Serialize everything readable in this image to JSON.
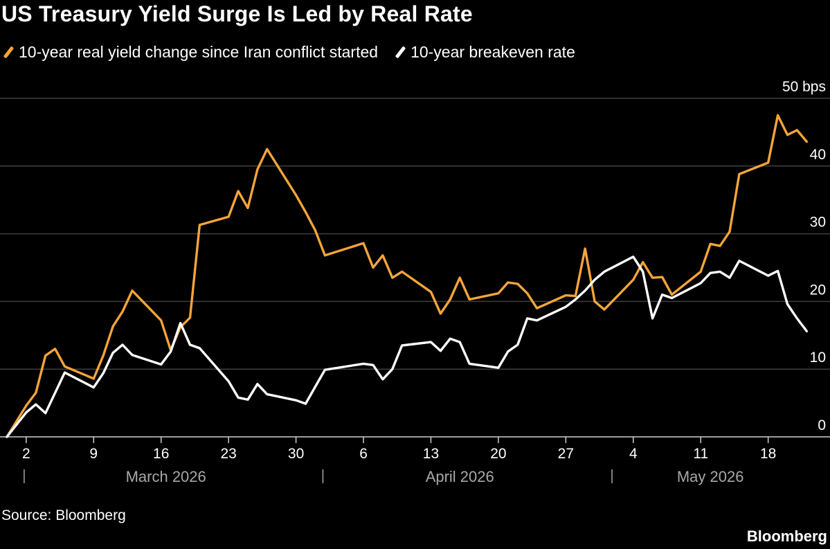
{
  "chart_data": {
    "type": "line",
    "title": "US Treasury Yield Surge Is Led by Real Rate",
    "ylabel_unit": "bps",
    "ylim": [
      0,
      50
    ],
    "y_ticks": [
      0,
      10,
      20,
      30,
      40,
      50
    ],
    "y_tick_labels": [
      "0",
      "10",
      "20",
      "30",
      "40",
      "50 bps"
    ],
    "x_range": [
      "2026-02-28",
      "2026-05-23"
    ],
    "x_ticks": [
      {
        "date": "2026-03-02",
        "label": "2"
      },
      {
        "date": "2026-03-09",
        "label": "9"
      },
      {
        "date": "2026-03-16",
        "label": "16"
      },
      {
        "date": "2026-03-23",
        "label": "23"
      },
      {
        "date": "2026-03-30",
        "label": "30"
      },
      {
        "date": "2026-04-06",
        "label": "6"
      },
      {
        "date": "2026-04-13",
        "label": "13"
      },
      {
        "date": "2026-04-20",
        "label": "20"
      },
      {
        "date": "2026-04-27",
        "label": "27"
      },
      {
        "date": "2026-05-04",
        "label": "4"
      },
      {
        "date": "2026-05-11",
        "label": "11"
      },
      {
        "date": "2026-05-18",
        "label": "18"
      }
    ],
    "month_labels": [
      {
        "label": "March 2026",
        "start": "2026-03-01",
        "end": "2026-04-01"
      },
      {
        "label": "April 2026",
        "start": "2026-04-01",
        "end": "2026-05-01"
      },
      {
        "label": "May 2026",
        "start": "2026-05-01",
        "end": "2026-05-23"
      }
    ],
    "month_separators": [
      "2026-03-01",
      "2026-04-01",
      "2026-05-01"
    ],
    "grid": true,
    "legend_position": "top-left",
    "series": [
      {
        "name": "10-year real yield change since Iran conflict started",
        "color": "#f5a53a",
        "points": [
          [
            "2026-02-28",
            0
          ],
          [
            "2026-03-02",
            4.6
          ],
          [
            "2026-03-03",
            6.5
          ],
          [
            "2026-03-04",
            12.0
          ],
          [
            "2026-03-05",
            13.0
          ],
          [
            "2026-03-06",
            10.4
          ],
          [
            "2026-03-09",
            8.6
          ],
          [
            "2026-03-10",
            12.0
          ],
          [
            "2026-03-11",
            16.3
          ],
          [
            "2026-03-12",
            18.5
          ],
          [
            "2026-03-13",
            21.6
          ],
          [
            "2026-03-16",
            17.2
          ],
          [
            "2026-03-17",
            12.8
          ],
          [
            "2026-03-18",
            16.2
          ],
          [
            "2026-03-19",
            17.6
          ],
          [
            "2026-03-20",
            31.3
          ],
          [
            "2026-03-23",
            32.5
          ],
          [
            "2026-03-24",
            36.3
          ],
          [
            "2026-03-25",
            33.8
          ],
          [
            "2026-03-26",
            39.5
          ],
          [
            "2026-03-27",
            42.5
          ],
          [
            "2026-03-30",
            35.7
          ],
          [
            "2026-03-31",
            33.2
          ],
          [
            "2026-04-01",
            30.5
          ],
          [
            "2026-04-02",
            26.8
          ],
          [
            "2026-04-06",
            28.6
          ],
          [
            "2026-04-07",
            25.0
          ],
          [
            "2026-04-08",
            26.8
          ],
          [
            "2026-04-09",
            23.5
          ],
          [
            "2026-04-10",
            24.4
          ],
          [
            "2026-04-13",
            21.4
          ],
          [
            "2026-04-14",
            18.2
          ],
          [
            "2026-04-15",
            20.3
          ],
          [
            "2026-04-16",
            23.5
          ],
          [
            "2026-04-17",
            20.3
          ],
          [
            "2026-04-20",
            21.2
          ],
          [
            "2026-04-21",
            22.8
          ],
          [
            "2026-04-22",
            22.6
          ],
          [
            "2026-04-23",
            21.2
          ],
          [
            "2026-04-24",
            19.0
          ],
          [
            "2026-04-27",
            20.9
          ],
          [
            "2026-04-28",
            20.8
          ],
          [
            "2026-04-29",
            27.8
          ],
          [
            "2026-04-30",
            20.0
          ],
          [
            "2026-05-01",
            18.8
          ],
          [
            "2026-05-04",
            23.2
          ],
          [
            "2026-05-05",
            25.8
          ],
          [
            "2026-05-06",
            23.5
          ],
          [
            "2026-05-07",
            23.6
          ],
          [
            "2026-05-08",
            21.0
          ],
          [
            "2026-05-11",
            24.4
          ],
          [
            "2026-05-12",
            28.5
          ],
          [
            "2026-05-13",
            28.2
          ],
          [
            "2026-05-14",
            30.3
          ],
          [
            "2026-05-15",
            38.8
          ],
          [
            "2026-05-18",
            40.5
          ],
          [
            "2026-05-19",
            47.5
          ],
          [
            "2026-05-20",
            44.6
          ],
          [
            "2026-05-21",
            45.3
          ],
          [
            "2026-05-22",
            43.6
          ]
        ]
      },
      {
        "name": "10-year breakeven rate",
        "color": "#ffffff",
        "points": [
          [
            "2026-02-28",
            0
          ],
          [
            "2026-03-02",
            3.6
          ],
          [
            "2026-03-03",
            4.8
          ],
          [
            "2026-03-04",
            3.5
          ],
          [
            "2026-03-06",
            9.5
          ],
          [
            "2026-03-09",
            7.3
          ],
          [
            "2026-03-10",
            9.4
          ],
          [
            "2026-03-11",
            12.4
          ],
          [
            "2026-03-12",
            13.6
          ],
          [
            "2026-03-13",
            12.1
          ],
          [
            "2026-03-16",
            10.7
          ],
          [
            "2026-03-17",
            12.6
          ],
          [
            "2026-03-18",
            16.8
          ],
          [
            "2026-03-19",
            13.6
          ],
          [
            "2026-03-20",
            13.1
          ],
          [
            "2026-03-23",
            8.2
          ],
          [
            "2026-03-24",
            5.8
          ],
          [
            "2026-03-25",
            5.5
          ],
          [
            "2026-03-26",
            7.8
          ],
          [
            "2026-03-27",
            6.3
          ],
          [
            "2026-03-30",
            5.4
          ],
          [
            "2026-03-31",
            4.9
          ],
          [
            "2026-04-01",
            7.4
          ],
          [
            "2026-04-02",
            9.9
          ],
          [
            "2026-04-06",
            10.8
          ],
          [
            "2026-04-07",
            10.6
          ],
          [
            "2026-04-08",
            8.5
          ],
          [
            "2026-04-09",
            10.0
          ],
          [
            "2026-04-10",
            13.5
          ],
          [
            "2026-04-13",
            14.0
          ],
          [
            "2026-04-14",
            12.7
          ],
          [
            "2026-04-15",
            14.5
          ],
          [
            "2026-04-16",
            14.0
          ],
          [
            "2026-04-17",
            10.8
          ],
          [
            "2026-04-20",
            10.2
          ],
          [
            "2026-04-21",
            12.6
          ],
          [
            "2026-04-22",
            13.6
          ],
          [
            "2026-04-23",
            17.5
          ],
          [
            "2026-04-24",
            17.2
          ],
          [
            "2026-04-27",
            19.2
          ],
          [
            "2026-04-28",
            20.3
          ],
          [
            "2026-04-29",
            21.6
          ],
          [
            "2026-04-30",
            23.2
          ],
          [
            "2026-05-01",
            24.4
          ],
          [
            "2026-05-04",
            26.6
          ],
          [
            "2026-05-05",
            24.4
          ],
          [
            "2026-05-06",
            17.5
          ],
          [
            "2026-05-07",
            21.0
          ],
          [
            "2026-05-08",
            20.5
          ],
          [
            "2026-05-11",
            22.7
          ],
          [
            "2026-05-12",
            24.2
          ],
          [
            "2026-05-13",
            24.4
          ],
          [
            "2026-05-14",
            23.5
          ],
          [
            "2026-05-15",
            26.0
          ],
          [
            "2026-05-18",
            23.8
          ],
          [
            "2026-05-19",
            24.5
          ],
          [
            "2026-05-20",
            19.6
          ],
          [
            "2026-05-21",
            17.5
          ],
          [
            "2026-05-22",
            15.6
          ]
        ]
      }
    ]
  },
  "source": "Source: Bloomberg",
  "brand": "Bloomberg"
}
